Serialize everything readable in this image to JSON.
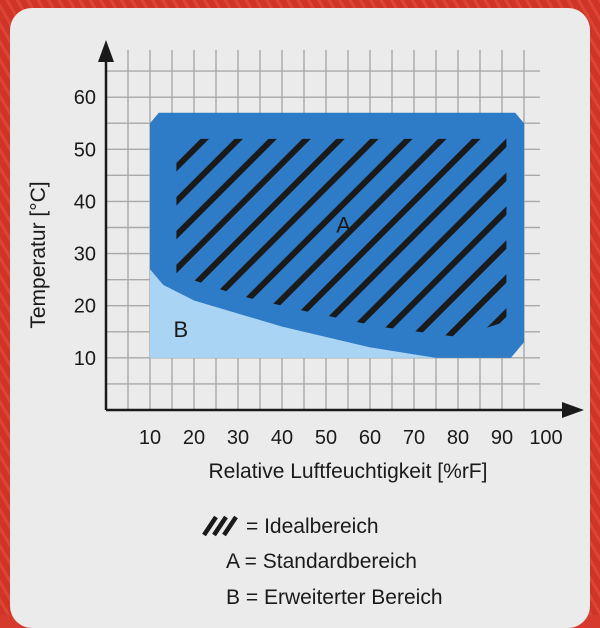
{
  "chart_data": {
    "type": "area",
    "title": "",
    "xlabel": "Relative Luftfeuchtigkeit [%rF]",
    "ylabel": "Temperatur [°C]",
    "xlim": [
      0,
      100
    ],
    "ylim": [
      0,
      70
    ],
    "x_ticks": [
      10,
      20,
      30,
      40,
      50,
      60,
      70,
      80,
      90,
      100
    ],
    "y_ticks": [
      10,
      20,
      30,
      40,
      50,
      60
    ],
    "grid": true,
    "regions": [
      {
        "label": "B",
        "fill": "#a9d4f3",
        "points": [
          [
            10,
            10
          ],
          [
            10,
            27
          ],
          [
            13,
            24
          ],
          [
            20,
            21
          ],
          [
            40,
            16
          ],
          [
            60,
            12
          ],
          [
            75,
            10
          ]
        ]
      },
      {
        "label": "A",
        "fill": "#2e7bc8",
        "points": [
          [
            10,
            27
          ],
          [
            10,
            55
          ],
          [
            12,
            57
          ],
          [
            93,
            57
          ],
          [
            95,
            55
          ],
          [
            95,
            13
          ],
          [
            92,
            10
          ],
          [
            75,
            10
          ],
          [
            60,
            12
          ],
          [
            40,
            16
          ],
          [
            20,
            21
          ],
          [
            13,
            24
          ]
        ]
      }
    ],
    "hatch_region": {
      "fill": "#1a1a1a",
      "points": [
        [
          16,
          52
        ],
        [
          91,
          52
        ],
        [
          91,
          17
        ],
        [
          80,
          14
        ],
        [
          62,
          16
        ],
        [
          45,
          19
        ],
        [
          30,
          22
        ],
        [
          16,
          26
        ]
      ]
    },
    "region_labels": [
      {
        "text": "A",
        "x": 54,
        "y": 34
      },
      {
        "text": "B",
        "x": 17,
        "y": 14
      }
    ]
  },
  "legend": {
    "hatch_symbol": "///",
    "hatch_text": "= Idealbereich",
    "a_text": "A = Standardbereich",
    "b_text": "B = Erweiterter Bereich"
  },
  "colors": {
    "background": "#d63a2c",
    "card": "#ebebeb",
    "region_a": "#2e7bc8",
    "region_b": "#a9d4f3",
    "hatch": "#1a1a1a",
    "grid": "#a9a9a9"
  }
}
